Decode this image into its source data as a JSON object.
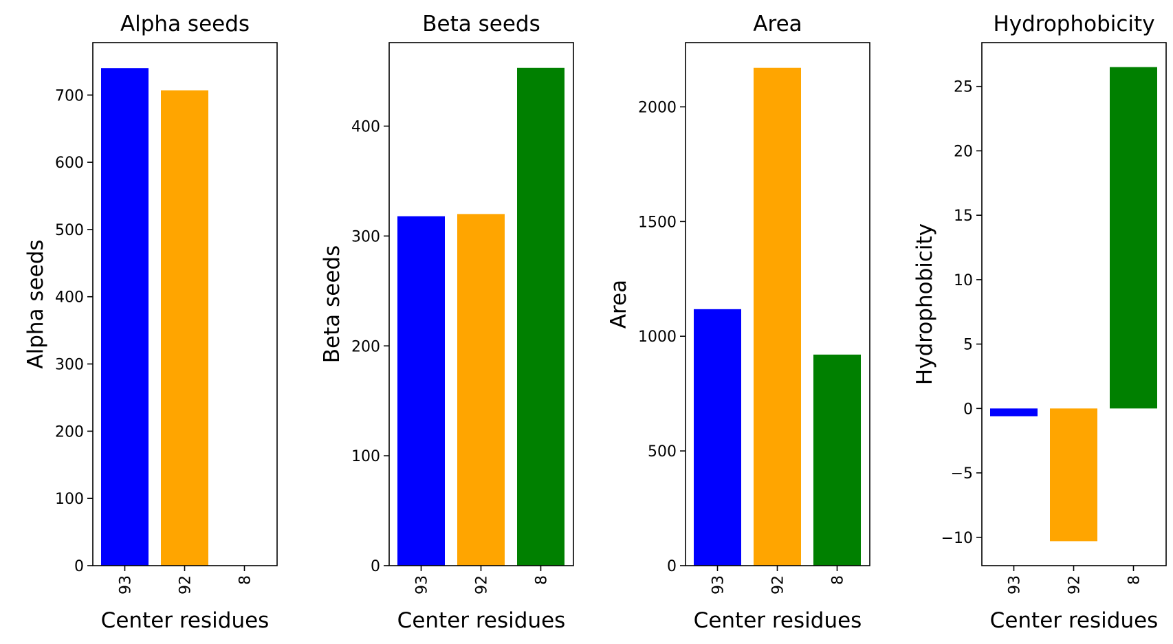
{
  "chart_data": [
    {
      "type": "bar",
      "title": "Alpha seeds",
      "xlabel": "Center residues",
      "ylabel": "Alpha seeds",
      "categories": [
        "93",
        "92",
        "8"
      ],
      "values": [
        740,
        707,
        0
      ],
      "colors": [
        "#0000ff",
        "#ffa500",
        "#008000"
      ],
      "ylim": [
        0,
        778
      ],
      "yticks": [
        0,
        100,
        200,
        300,
        400,
        500,
        600,
        700
      ],
      "grid": false
    },
    {
      "type": "bar",
      "title": "Beta seeds",
      "xlabel": "Center residues",
      "ylabel": "Beta seeds",
      "categories": [
        "93",
        "92",
        "8"
      ],
      "values": [
        318,
        320,
        453
      ],
      "colors": [
        "#0000ff",
        "#ffa500",
        "#008000"
      ],
      "ylim": [
        0,
        476
      ],
      "yticks": [
        0,
        100,
        200,
        300,
        400
      ],
      "grid": false
    },
    {
      "type": "bar",
      "title": "Area",
      "xlabel": "Center residues",
      "ylabel": "Area",
      "categories": [
        "93",
        "92",
        "8"
      ],
      "values": [
        1118,
        2170,
        920
      ],
      "colors": [
        "#0000ff",
        "#ffa500",
        "#008000"
      ],
      "ylim": [
        0,
        2280
      ],
      "yticks": [
        0,
        500,
        1000,
        1500,
        2000
      ],
      "grid": false
    },
    {
      "type": "bar",
      "title": "Hydrophobicity",
      "xlabel": "Center residues",
      "ylabel": "Hydrophobicity",
      "categories": [
        "93",
        "92",
        "8"
      ],
      "values": [
        -0.6,
        -10.3,
        26.5
      ],
      "colors": [
        "#0000ff",
        "#ffa500",
        "#008000"
      ],
      "ylim": [
        -12.2,
        28.4
      ],
      "yticks": [
        -10,
        -5,
        0,
        5,
        10,
        15,
        20,
        25
      ],
      "ytick_labels": [
        "−10",
        "−5",
        "0",
        "5",
        "10",
        "15",
        "20",
        "25"
      ],
      "grid": false
    }
  ]
}
